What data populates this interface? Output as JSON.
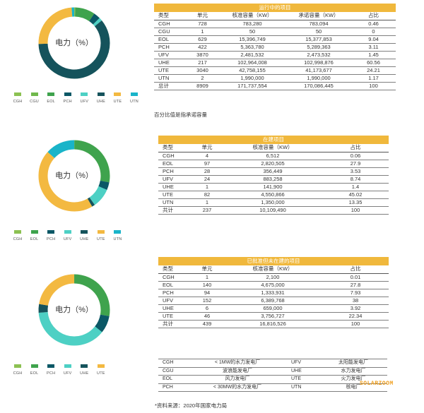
{
  "colors": {
    "CGH": "#8cc152",
    "CGU": "#70b84c",
    "EOL": "#3fa34d",
    "PCH": "#0b5866",
    "UFV": "#4dd0c4",
    "UHE": "#15535c",
    "UTE": "#f3b941",
    "UTN": "#19b4c9",
    "track": "#f5f2dc"
  },
  "legend_codes_1": [
    "CGH",
    "CGU",
    "EOL",
    "PCH",
    "UFV",
    "UHE",
    "UTE",
    "UTN"
  ],
  "legend_codes_2": [
    "CGH",
    "EOL",
    "PCH",
    "UFV",
    "UHE",
    "UTE",
    "UTN"
  ],
  "legend_codes_3": [
    "CGH",
    "EOL",
    "PCH",
    "UFV",
    "UHE",
    "UTE"
  ],
  "chart_data": [
    {
      "type": "pie",
      "center_label": "电力（%）",
      "table_title": "运行中的项目",
      "columns": [
        "类型",
        "单元",
        "核准容量（KW）",
        "承诺容量（KW）",
        "占比"
      ],
      "rows": [
        [
          "CGH",
          "728",
          "783,280",
          "783,094",
          "0.46"
        ],
        [
          "CGU",
          "1",
          "50",
          "50",
          "0"
        ],
        [
          "EOL",
          "629",
          "15,396,749",
          "15,377,853",
          "9.04"
        ],
        [
          "PCH",
          "422",
          "5,363,780",
          "5,289,363",
          "3.11"
        ],
        [
          "UFV",
          "3870",
          "2,481,532",
          "2,473,532",
          "1.45"
        ],
        [
          "UHE",
          "217",
          "102,964,008",
          "102,998,876",
          "60.56"
        ],
        [
          "UTE",
          "3040",
          "42,758,155",
          "41,173,677",
          "24.21"
        ],
        [
          "UTN",
          "2",
          "1,990,000",
          "1,990,000",
          "1.17"
        ],
        [
          "总计",
          "8909",
          "171,737,554",
          "170,086,445",
          "100"
        ]
      ],
      "categories": [
        "CGH",
        "CGU",
        "EOL",
        "PCH",
        "UFV",
        "UHE",
        "UTE",
        "UTN"
      ],
      "values": [
        0.46,
        0,
        9.04,
        3.11,
        1.45,
        60.56,
        24.21,
        1.17
      ],
      "note": "百分比值是指承诺容量"
    },
    {
      "type": "pie",
      "center_label": "电力（%）",
      "table_title": "在建项目",
      "columns": [
        "类型",
        "单元",
        "核准容量（KW）",
        "占比"
      ],
      "rows": [
        [
          "CGH",
          "4",
          "6,512",
          "0.06"
        ],
        [
          "EOL",
          "97",
          "2,820,505",
          "27.9"
        ],
        [
          "PCH",
          "28",
          "356,449",
          "3.53"
        ],
        [
          "UFV",
          "24",
          "883,258",
          "8.74"
        ],
        [
          "UHE",
          "1",
          "141,900",
          "1.4"
        ],
        [
          "UTE",
          "82",
          "4,550,866",
          "45.02"
        ],
        [
          "UTN",
          "1",
          "1,350,000",
          "13.35"
        ],
        [
          "共计",
          "237",
          "10,109,490",
          "100"
        ]
      ],
      "categories": [
        "CGH",
        "EOL",
        "PCH",
        "UFV",
        "UHE",
        "UTE",
        "UTN"
      ],
      "values": [
        0.06,
        27.9,
        3.53,
        8.74,
        1.4,
        45.02,
        13.35
      ]
    },
    {
      "type": "pie",
      "center_label": "电力（%）",
      "table_title": "已批准但未在建的项目",
      "columns": [
        "类型",
        "单元",
        "核准容量（KW）",
        "占比"
      ],
      "rows": [
        [
          "CGH",
          "1",
          "2,100",
          "0.01"
        ],
        [
          "EOL",
          "140",
          "4,675,000",
          "27.8"
        ],
        [
          "PCH",
          "94",
          "1,333,931",
          "7.93"
        ],
        [
          "UFV",
          "152",
          "6,389,768",
          "38"
        ],
        [
          "UHE",
          "6",
          "659,000",
          "3.92"
        ],
        [
          "UTE",
          "46",
          "3,756,727",
          "22.34"
        ],
        [
          "共计",
          "439",
          "16,816,526",
          "100"
        ]
      ],
      "categories": [
        "CGH",
        "EOL",
        "PCH",
        "UFV",
        "UHE",
        "UTE"
      ],
      "values": [
        0.01,
        27.8,
        7.93,
        38,
        3.92,
        22.34
      ]
    }
  ],
  "key_table": [
    [
      "CGH",
      "< 1MW的水力发电厂",
      "UFV",
      "太阳能发电厂"
    ],
    [
      "CGU",
      "波浪能发电厂",
      "UHE",
      "水力发电厂"
    ],
    [
      "EOL",
      "风力发电厂",
      "UTE",
      "火力发电厂"
    ],
    [
      "PCH",
      "< 30MW的水力发电厂",
      "UTN",
      "核电厂"
    ]
  ],
  "source": "*资料来源：2020年国家电力局",
  "watermark": "SOLARZOOM"
}
